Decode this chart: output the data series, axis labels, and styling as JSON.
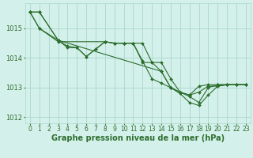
{
  "title": "Graphe pression niveau de la mer (hPa)",
  "bg_color": "#d4f0eb",
  "grid_color": "#a8d8cc",
  "line_color": "#2d6e2d",
  "ylim": [
    1011.8,
    1015.85
  ],
  "xlim": [
    -0.5,
    23.5
  ],
  "xticks": [
    0,
    1,
    2,
    3,
    4,
    5,
    6,
    7,
    8,
    9,
    10,
    11,
    12,
    13,
    14,
    15,
    16,
    17,
    18,
    19,
    20,
    21,
    22,
    23
  ],
  "yticks": [
    1012,
    1013,
    1014,
    1015
  ],
  "series": [
    {
      "x": [
        0,
        1,
        3,
        4,
        5,
        6,
        7,
        8,
        9,
        10,
        11,
        12,
        13,
        14,
        15,
        16,
        17,
        18,
        19,
        20,
        21,
        22,
        23
      ],
      "y": [
        1015.55,
        1015.55,
        1014.6,
        1014.4,
        1014.35,
        1014.05,
        1014.3,
        1014.55,
        1014.5,
        1014.5,
        1014.5,
        1013.85,
        1013.85,
        1013.85,
        1013.3,
        1012.85,
        1012.7,
        1012.5,
        1013.0,
        1013.1,
        1013.1,
        1013.1,
        1013.1
      ]
    },
    {
      "x": [
        0,
        1,
        3,
        8,
        9,
        10,
        11,
        12,
        13,
        14,
        15,
        16,
        17,
        18,
        19,
        20,
        21,
        22,
        23
      ],
      "y": [
        1015.55,
        1015.0,
        1014.55,
        1014.55,
        1014.5,
        1014.5,
        1014.5,
        1013.9,
        1013.3,
        1013.15,
        1013.0,
        1012.85,
        1012.75,
        1013.05,
        1013.1,
        1013.1,
        1013.1,
        1013.1,
        1013.1
      ]
    },
    {
      "x": [
        0,
        1,
        3,
        4,
        5,
        6,
        7,
        8,
        9,
        10,
        11,
        12,
        13,
        14,
        15,
        16,
        17,
        18,
        19,
        20,
        21,
        22,
        23
      ],
      "y": [
        1015.55,
        1015.0,
        1014.6,
        1014.35,
        1014.35,
        1014.05,
        1014.3,
        1014.55,
        1014.5,
        1014.5,
        1014.5,
        1014.5,
        1013.85,
        1013.55,
        1013.0,
        1012.8,
        1012.5,
        1012.4,
        1012.75,
        1013.05,
        1013.1,
        1013.1,
        1013.1
      ]
    },
    {
      "x": [
        0,
        1,
        3,
        14,
        15,
        16,
        17,
        18,
        19,
        20,
        21,
        22,
        23
      ],
      "y": [
        1015.55,
        1015.55,
        1014.6,
        1013.55,
        1013.0,
        1012.85,
        1012.75,
        1012.85,
        1013.05,
        1013.05,
        1013.1,
        1013.1,
        1013.1
      ]
    }
  ],
  "xlabel_fontsize": 7,
  "tick_fontsize": 5.5
}
